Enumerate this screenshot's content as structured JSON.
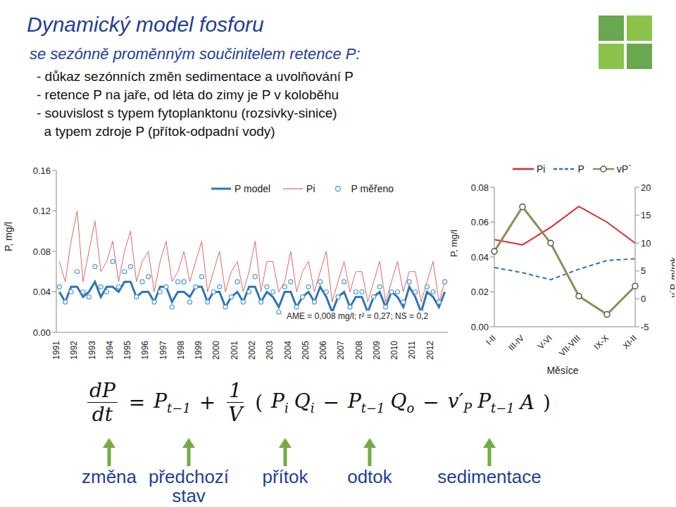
{
  "slide": {
    "title": "Dynamický model fosforu",
    "subtitle": "se sezónně proměnným součinitelem retence P:",
    "bullets": [
      "- důkaz sezónních změn sedimentace a uvolňování P",
      "- retence P na jaře, od léta do zimy je P v koloběhu",
      "- souvislost s typem fytoplanktonu (rozsivky-sinice)",
      "  a typem zdroje P (přítok-odpadní vody)"
    ],
    "equation": [
      {
        "frac": [
          "dP",
          "dt"
        ]
      },
      {
        "text": "="
      },
      {
        "base": "P",
        "sub": "t−1"
      },
      {
        "text": "+"
      },
      {
        "frac": [
          "1",
          "V"
        ]
      },
      {
        "text": "("
      },
      {
        "base": "P",
        "sub": "i"
      },
      {
        "base": "Q",
        "sub": "i"
      },
      {
        "text": "−"
      },
      {
        "base": "P",
        "sub": "t−1"
      },
      {
        "base": "Q",
        "sub": "o"
      },
      {
        "text": "−"
      },
      {
        "base": "v′",
        "sub": "P"
      },
      {
        "base": "P",
        "sub": "t−1"
      },
      {
        "base": "A"
      },
      {
        "text": ")"
      }
    ],
    "term_labels": [
      "změna",
      "předchozí stav",
      "přítok",
      "odtok",
      "sedimentace"
    ]
  },
  "chart_data": [
    {
      "type": "line",
      "ylabel": "P, mg/l",
      "annotation": "AME = 0,008 mg/l; r² = 0,27; NS = 0,2",
      "xlim": [
        1991,
        2013
      ],
      "xticks": [
        1991,
        1992,
        1993,
        1994,
        1995,
        1996,
        1997,
        1998,
        1999,
        2000,
        2001,
        2002,
        2003,
        2004,
        2005,
        2006,
        2007,
        2008,
        2009,
        2010,
        2011,
        2012
      ],
      "ylim": [
        0,
        0.16
      ],
      "yticks": [
        {
          "value": 0,
          "label": "0.00"
        },
        0.04,
        0.08,
        0.12,
        0.16
      ],
      "grid": false,
      "legend": "top",
      "x": [
        1991.17,
        1991.5,
        1991.83,
        1992.17,
        1992.5,
        1992.83,
        1993.17,
        1993.5,
        1993.83,
        1994.17,
        1994.5,
        1994.83,
        1995.17,
        1995.5,
        1995.83,
        1996.17,
        1996.5,
        1996.83,
        1997.17,
        1997.5,
        1997.83,
        1998.17,
        1998.5,
        1998.83,
        1999.17,
        1999.5,
        1999.83,
        2000.17,
        2000.5,
        2000.83,
        2001.17,
        2001.5,
        2001.83,
        2002.17,
        2002.5,
        2002.83,
        2003.17,
        2003.5,
        2003.83,
        2004.17,
        2004.5,
        2004.83,
        2005.17,
        2005.5,
        2005.83,
        2006.17,
        2006.5,
        2006.83,
        2007.17,
        2007.5,
        2007.83,
        2008.17,
        2008.5,
        2008.83,
        2009.17,
        2009.5,
        2009.83,
        2010.17,
        2010.5,
        2010.83,
        2011.17,
        2011.5,
        2011.83,
        2012.17,
        2012.5,
        2012.83
      ],
      "series": [
        {
          "name": "P model",
          "color": "#2e75b6",
          "type": "line",
          "values": [
            0.04,
            0.03,
            0.045,
            0.045,
            0.035,
            0.04,
            0.05,
            0.035,
            0.045,
            0.045,
            0.04,
            0.05,
            0.05,
            0.035,
            0.04,
            0.04,
            0.03,
            0.045,
            0.045,
            0.03,
            0.04,
            0.04,
            0.035,
            0.045,
            0.045,
            0.03,
            0.04,
            0.04,
            0.025,
            0.035,
            0.04,
            0.03,
            0.045,
            0.045,
            0.03,
            0.04,
            0.035,
            0.025,
            0.04,
            0.04,
            0.025,
            0.035,
            0.04,
            0.03,
            0.045,
            0.035,
            0.02,
            0.035,
            0.04,
            0.025,
            0.035,
            0.035,
            0.02,
            0.035,
            0.04,
            0.025,
            0.04,
            0.035,
            0.025,
            0.045,
            0.035,
            0.02,
            0.04,
            0.035,
            0.025,
            0.04
          ]
        },
        {
          "name": "Pi",
          "color": "#e06666",
          "type": "line",
          "values": [
            0.07,
            0.05,
            0.09,
            0.12,
            0.05,
            0.08,
            0.11,
            0.06,
            0.07,
            0.09,
            0.05,
            0.08,
            0.1,
            0.05,
            0.07,
            0.08,
            0.04,
            0.07,
            0.09,
            0.05,
            0.06,
            0.08,
            0.05,
            0.07,
            0.09,
            0.04,
            0.06,
            0.08,
            0.04,
            0.06,
            0.07,
            0.04,
            0.06,
            0.09,
            0.04,
            0.07,
            0.07,
            0.04,
            0.05,
            0.08,
            0.04,
            0.06,
            0.07,
            0.04,
            0.06,
            0.08,
            0.03,
            0.05,
            0.07,
            0.04,
            0.06,
            0.06,
            0.03,
            0.05,
            0.07,
            0.03,
            0.05,
            0.07,
            0.04,
            0.06,
            0.06,
            0.03,
            0.05,
            0.07,
            0.03,
            0.05
          ]
        },
        {
          "name": "P měřeno",
          "color": "#4f9bd9",
          "type": "scatter",
          "marker": "circle",
          "values": [
            0.045,
            0.03,
            0.04,
            0.06,
            0.04,
            0.035,
            0.065,
            0.045,
            0.04,
            0.07,
            0.045,
            0.06,
            0.065,
            0.035,
            0.05,
            0.055,
            0.03,
            0.04,
            0.045,
            0.025,
            0.05,
            0.05,
            0.03,
            0.045,
            0.055,
            0.03,
            0.04,
            0.045,
            0.025,
            0.035,
            0.05,
            0.03,
            0.04,
            0.055,
            0.03,
            0.045,
            0.04,
            0.02,
            0.045,
            0.05,
            0.025,
            0.035,
            0.045,
            0.03,
            0.05,
            0.04,
            0.015,
            0.035,
            0.05,
            0.025,
            0.04,
            0.04,
            0.02,
            0.035,
            0.045,
            0.025,
            0.04,
            0.04,
            0.03,
            0.05,
            0.04,
            0.02,
            0.045,
            0.04,
            0.03,
            0.05
          ]
        }
      ]
    },
    {
      "type": "line",
      "xlabel": "Měsíce",
      "ylabel": "P, mg/l",
      "y2label": "v´P, m/rok",
      "categories": [
        "I-II",
        "III-IV",
        "V-VI",
        "VII-VIII",
        "IX-X",
        "XI-II"
      ],
      "ylim": [
        0,
        0.08
      ],
      "yticks": [
        {
          "value": 0,
          "label": "0.00"
        },
        0.02,
        0.04,
        0.06,
        0.08
      ],
      "y2lim": [
        -5,
        20
      ],
      "y2ticks": [
        -5,
        0,
        5,
        10,
        15,
        20
      ],
      "grid": false,
      "legend": "top",
      "series": [
        {
          "name": "Pi",
          "color": "#e0282e",
          "line_style": "solid",
          "values": [
            0.05,
            0.047,
            0.057,
            0.069,
            0.06,
            0.048
          ]
        },
        {
          "name": "P",
          "color": "#2e75b6",
          "line_style": "dashed",
          "values": [
            0.034,
            0.031,
            0.027,
            0.033,
            0.038,
            0.039
          ]
        },
        {
          "name": "vP´",
          "color": "#948a54",
          "line_style": "solid",
          "marker": "circle",
          "axis": "y2",
          "values": [
            8.5,
            16.5,
            10,
            0.5,
            -2.8,
            2.3
          ]
        }
      ]
    }
  ]
}
